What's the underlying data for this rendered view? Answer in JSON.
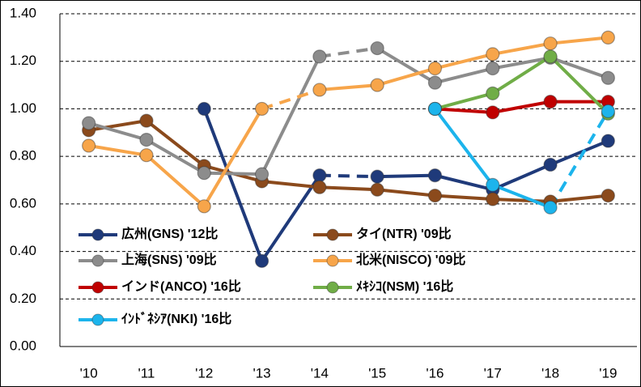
{
  "chart_data": {
    "type": "line",
    "categories": [
      "'10",
      "'11",
      "'12",
      "'13",
      "'14",
      "'15",
      "'16",
      "'17",
      "'18",
      "'19"
    ],
    "ylim": [
      0,
      1.4
    ],
    "yticks": [
      {
        "value": 0,
        "label": "0.00"
      },
      {
        "value": 0.2,
        "label": "0.20"
      },
      {
        "value": 0.4,
        "label": "0.40"
      },
      {
        "value": 0.6,
        "label": "0.60"
      },
      {
        "value": 0.8,
        "label": "0.80"
      },
      {
        "value": 1.0,
        "label": "1.00"
      },
      {
        "value": 1.2,
        "label": "1.20"
      },
      {
        "value": 1.4,
        "label": "1.40"
      }
    ],
    "grid": true,
    "legend": "bottom-left",
    "series": [
      {
        "name": "広州(GNS) '12比",
        "color": "#1f3a7a",
        "dashed_segments": [
          4
        ],
        "values": [
          null,
          null,
          1.0,
          0.36,
          0.72,
          0.715,
          0.72,
          0.66,
          0.765,
          0.865
        ]
      },
      {
        "name": "タイ(NTR) '09比",
        "color": "#8b4a1c",
        "values": [
          0.91,
          0.95,
          0.76,
          0.695,
          0.67,
          0.66,
          0.635,
          0.62,
          0.61,
          0.635
        ]
      },
      {
        "name": "上海(SNS) '09比",
        "color": "#8c8c8c",
        "dashed_segments": [
          4
        ],
        "values": [
          0.94,
          0.87,
          0.73,
          0.725,
          1.22,
          1.255,
          1.11,
          1.17,
          1.215,
          1.13
        ]
      },
      {
        "name": "北米(NISCO) '09比",
        "color": "#f7a54a",
        "dashed_segments": [
          3
        ],
        "values": [
          0.845,
          0.805,
          0.59,
          1.0,
          1.08,
          1.1,
          1.17,
          1.23,
          1.275,
          1.3
        ]
      },
      {
        "name": "インド(ANCO) '16比",
        "color": "#c00000",
        "values": [
          null,
          null,
          null,
          null,
          null,
          null,
          1.0,
          0.985,
          1.03,
          1.03
        ]
      },
      {
        "name": "ﾒｷｼｺ(NSM) '16比",
        "color": "#70ad47",
        "values": [
          null,
          null,
          null,
          null,
          null,
          null,
          1.0,
          1.065,
          1.22,
          0.98
        ]
      },
      {
        "name": "ｲﾝﾄﾞﾈｼｱ(NKI) '16比",
        "color": "#1cb4ec",
        "dashed_segments": [
          8
        ],
        "values": [
          null,
          null,
          null,
          null,
          null,
          null,
          1.0,
          0.68,
          0.585,
          0.99
        ]
      }
    ]
  }
}
